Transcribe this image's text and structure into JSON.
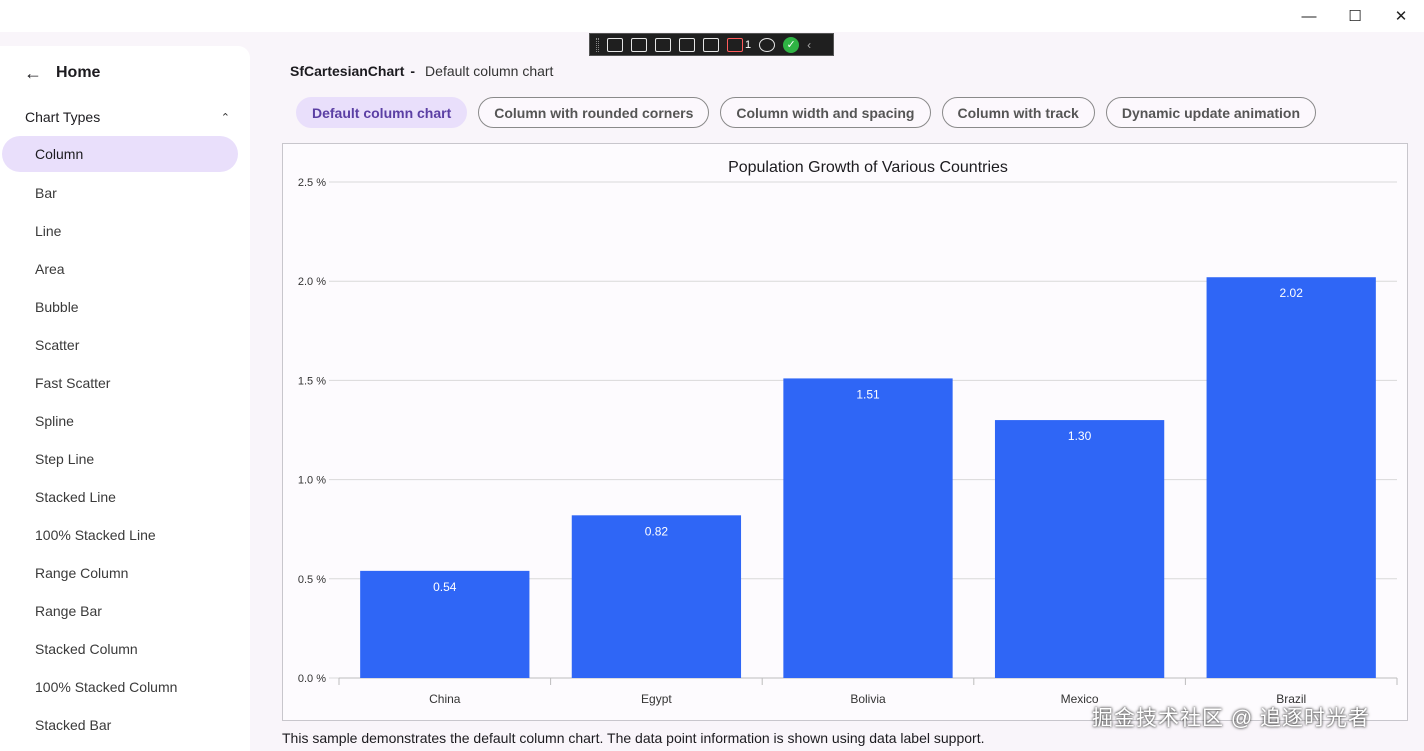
{
  "window": {
    "minimize": "—",
    "maximize": "☐",
    "close": "✕"
  },
  "debug_toolbar": {
    "counter": "1",
    "check": "✓",
    "collapse": "‹"
  },
  "sidebar": {
    "back_icon": "←",
    "home_label": "Home",
    "section_label": "Chart Types",
    "section_chevron": "⌃",
    "items": [
      {
        "label": "Column",
        "active": true
      },
      {
        "label": "Bar"
      },
      {
        "label": "Line"
      },
      {
        "label": "Area"
      },
      {
        "label": "Bubble"
      },
      {
        "label": "Scatter"
      },
      {
        "label": "Fast Scatter"
      },
      {
        "label": "Spline"
      },
      {
        "label": "Step Line"
      },
      {
        "label": "Stacked Line"
      },
      {
        "label": "100% Stacked Line"
      },
      {
        "label": "Range Column"
      },
      {
        "label": "Range Bar"
      },
      {
        "label": "Stacked Column"
      },
      {
        "label": "100% Stacked Column"
      },
      {
        "label": "Stacked Bar"
      }
    ]
  },
  "header": {
    "control": "SfCartesianChart",
    "separator": "-",
    "sample": "Default column chart"
  },
  "chips": [
    {
      "label": "Default column chart",
      "active": true
    },
    {
      "label": "Column with rounded corners"
    },
    {
      "label": "Column width and spacing"
    },
    {
      "label": "Column with track"
    },
    {
      "label": "Dynamic update animation"
    }
  ],
  "chart_data": {
    "type": "bar",
    "title": "Population Growth of Various Countries",
    "categories": [
      "China",
      "Egypt",
      "Bolivia",
      "Mexico",
      "Brazil"
    ],
    "values": [
      0.54,
      0.82,
      1.51,
      1.3,
      2.02
    ],
    "data_labels": [
      "0.54",
      "0.82",
      "1.51",
      "1.30",
      "2.02"
    ],
    "yticks": [
      "0.0 %",
      "0.5 %",
      "1.0 %",
      "1.5 %",
      "2.0 %",
      "2.5 %"
    ],
    "ytick_values": [
      0,
      0.5,
      1.0,
      1.5,
      2.0,
      2.5
    ],
    "ylim": [
      0,
      2.5
    ],
    "bar_color": "#2f66f6",
    "grid": true
  },
  "description": "This sample demonstrates the default column chart. The data point information is shown using data label support.",
  "watermark": "掘金技术社区 @ 追逐时光者"
}
